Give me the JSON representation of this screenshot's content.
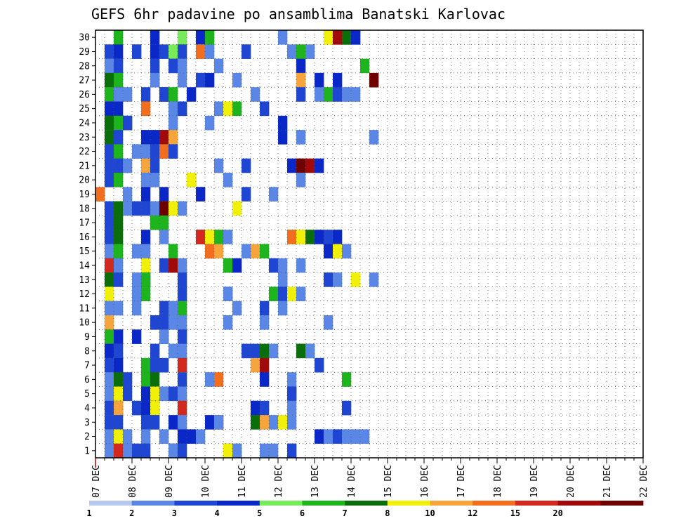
{
  "chart_data": {
    "type": "heatmap",
    "title": "GEFS 6hr padavine po ansamblima Banatski Karlovac",
    "xlabel": "",
    "ylabel": "",
    "x_tick_labels": [
      "07 DEC",
      "08 DEC",
      "09 DEC",
      "10 DEC",
      "11 DEC",
      "12 DEC",
      "13 DEC",
      "14 DEC",
      "15 DEC",
      "16 DEC",
      "17 DEC",
      "18 DEC",
      "19 DEC",
      "20 DEC",
      "21 DEC",
      "22 DEC"
    ],
    "y_tick_labels": [
      "1",
      "2",
      "3",
      "4",
      "5",
      "6",
      "7",
      "8",
      "9",
      "10",
      "11",
      "12",
      "13",
      "14",
      "15",
      "16",
      "17",
      "18",
      "19",
      "20",
      "21",
      "22",
      "23",
      "24",
      "25",
      "26",
      "27",
      "28",
      "29",
      "30"
    ],
    "members": 30,
    "steps_per_day": 4,
    "start_date": "07 DEC",
    "end_date": "22 DEC",
    "grid": true,
    "legend_position": "bottom",
    "legend": {
      "labels": [
        "1",
        "2",
        "3",
        "4",
        "5",
        "6",
        "7",
        "8",
        "10",
        "12",
        "15",
        "20"
      ],
      "colors": [
        "#b4c8f0",
        "#5a87e6",
        "#1e46d2",
        "#0a28c8",
        "#78eb5a",
        "#1eb41e",
        "#0a6e0a",
        "#f0f00a",
        "#f5a53c",
        "#f06e1e",
        "#d2281e",
        "#a00a0a",
        "#6e0000"
      ]
    },
    "cells": [
      [
        30,
        2,
        5
      ],
      [
        30,
        6,
        3
      ],
      [
        30,
        9,
        4
      ],
      [
        30,
        11,
        3
      ],
      [
        30,
        12,
        5
      ],
      [
        30,
        20,
        1
      ],
      [
        30,
        25,
        7
      ],
      [
        30,
        26,
        1
      ],
      [
        30,
        26,
        11
      ],
      [
        30,
        27,
        10
      ],
      [
        30,
        27,
        6
      ],
      [
        30,
        28,
        1
      ],
      [
        30,
        28,
        3
      ],
      [
        29,
        1,
        2
      ],
      [
        29,
        2,
        3
      ],
      [
        29,
        4,
        1
      ],
      [
        29,
        4,
        2
      ],
      [
        29,
        6,
        2
      ],
      [
        29,
        6,
        3
      ],
      [
        29,
        7,
        2
      ],
      [
        29,
        8,
        4
      ],
      [
        29,
        9,
        2
      ],
      [
        29,
        11,
        4
      ],
      [
        29,
        11,
        9
      ],
      [
        29,
        12,
        1
      ],
      [
        29,
        16,
        1
      ],
      [
        29,
        16,
        2
      ],
      [
        29,
        21,
        1
      ],
      [
        29,
        22,
        5
      ],
      [
        29,
        23,
        1
      ],
      [
        28,
        1,
        1
      ],
      [
        28,
        2,
        2
      ],
      [
        28,
        6,
        2
      ],
      [
        28,
        8,
        2
      ],
      [
        28,
        9,
        1
      ],
      [
        28,
        13,
        1
      ],
      [
        28,
        22,
        3
      ],
      [
        28,
        29,
        5
      ],
      [
        27,
        1,
        6
      ],
      [
        27,
        2,
        5
      ],
      [
        27,
        6,
        11
      ],
      [
        27,
        6,
        1
      ],
      [
        27,
        9,
        1
      ],
      [
        27,
        11,
        1
      ],
      [
        27,
        11,
        2
      ],
      [
        27,
        12,
        3
      ],
      [
        27,
        15,
        1
      ],
      [
        27,
        22,
        5
      ],
      [
        27,
        22,
        8
      ],
      [
        27,
        24,
        2
      ],
      [
        27,
        24,
        3
      ],
      [
        27,
        26,
        3
      ],
      [
        27,
        30,
        8
      ],
      [
        27,
        30,
        12
      ],
      [
        26,
        1,
        5
      ],
      [
        26,
        2,
        6
      ],
      [
        26,
        2,
        1
      ],
      [
        26,
        3,
        1
      ],
      [
        26,
        5,
        2
      ],
      [
        26,
        7,
        3
      ],
      [
        26,
        7,
        2
      ],
      [
        26,
        8,
        5
      ],
      [
        26,
        10,
        3
      ],
      [
        26,
        17,
        1
      ],
      [
        26,
        22,
        2
      ],
      [
        26,
        24,
        1
      ],
      [
        26,
        25,
        5
      ],
      [
        26,
        26,
        2
      ],
      [
        26,
        27,
        1
      ],
      [
        26,
        28,
        1
      ],
      [
        25,
        1,
        3
      ],
      [
        25,
        2,
        3
      ],
      [
        25,
        5,
        7
      ],
      [
        25,
        5,
        9
      ],
      [
        25,
        8,
        1
      ],
      [
        25,
        9,
        6
      ],
      [
        25,
        9,
        2
      ],
      [
        25,
        13,
        1
      ],
      [
        25,
        14,
        5
      ],
      [
        25,
        14,
        7
      ],
      [
        25,
        15,
        5
      ],
      [
        25,
        18,
        1
      ],
      [
        25,
        18,
        2
      ],
      [
        24,
        1,
        6
      ],
      [
        24,
        2,
        5
      ],
      [
        24,
        3,
        6
      ],
      [
        24,
        3,
        2
      ],
      [
        24,
        8,
        1
      ],
      [
        24,
        12,
        1
      ],
      [
        24,
        20,
        3
      ],
      [
        23,
        1,
        5
      ],
      [
        23,
        1,
        6
      ],
      [
        23,
        2,
        2
      ],
      [
        23,
        5,
        3
      ],
      [
        23,
        6,
        3
      ],
      [
        23,
        7,
        3
      ],
      [
        23,
        7,
        11
      ],
      [
        23,
        8,
        8
      ],
      [
        23,
        20,
        3
      ],
      [
        23,
        22,
        1
      ],
      [
        23,
        30,
        1
      ],
      [
        22,
        1,
        2
      ],
      [
        22,
        2,
        5
      ],
      [
        22,
        4,
        1
      ],
      [
        22,
        5,
        1
      ],
      [
        22,
        6,
        2
      ],
      [
        22,
        7,
        5
      ],
      [
        22,
        7,
        9
      ],
      [
        22,
        8,
        2
      ],
      [
        21,
        1,
        2
      ],
      [
        21,
        2,
        2
      ],
      [
        21,
        3,
        1
      ],
      [
        21,
        5,
        8
      ],
      [
        21,
        6,
        2
      ],
      [
        21,
        13,
        1
      ],
      [
        21,
        16,
        2
      ],
      [
        21,
        21,
        3
      ],
      [
        21,
        22,
        8
      ],
      [
        21,
        22,
        12
      ],
      [
        21,
        23,
        11
      ],
      [
        21,
        24,
        3
      ],
      [
        20,
        1,
        2
      ],
      [
        20,
        2,
        5
      ],
      [
        20,
        5,
        1
      ],
      [
        20,
        6,
        1
      ],
      [
        20,
        10,
        3
      ],
      [
        20,
        10,
        7
      ],
      [
        20,
        14,
        1
      ],
      [
        20,
        22,
        1
      ],
      [
        19,
        0,
        9
      ],
      [
        19,
        3,
        1
      ],
      [
        19,
        5,
        3
      ],
      [
        19,
        7,
        3
      ],
      [
        19,
        11,
        9
      ],
      [
        19,
        11,
        3
      ],
      [
        19,
        16,
        2
      ],
      [
        19,
        19,
        1
      ],
      [
        18,
        1,
        2
      ],
      [
        18,
        2,
        6
      ],
      [
        18,
        3,
        1
      ],
      [
        18,
        4,
        2
      ],
      [
        18,
        5,
        2
      ],
      [
        18,
        6,
        1
      ],
      [
        18,
        7,
        12
      ],
      [
        18,
        8,
        7
      ],
      [
        18,
        9,
        1
      ],
      [
        18,
        15,
        7
      ],
      [
        17,
        1,
        2
      ],
      [
        17,
        2,
        6
      ],
      [
        17,
        6,
        5
      ],
      [
        17,
        7,
        5
      ],
      [
        16,
        1,
        2
      ],
      [
        16,
        2,
        6
      ],
      [
        16,
        5,
        3
      ],
      [
        16,
        7,
        1
      ],
      [
        16,
        11,
        12
      ],
      [
        16,
        11,
        10
      ],
      [
        16,
        12,
        3
      ],
      [
        16,
        12,
        7
      ],
      [
        16,
        13,
        8
      ],
      [
        16,
        13,
        5
      ],
      [
        16,
        14,
        1
      ],
      [
        16,
        21,
        13
      ],
      [
        16,
        21,
        9
      ],
      [
        16,
        22,
        8
      ],
      [
        16,
        22,
        7
      ],
      [
        16,
        23,
        6
      ],
      [
        16,
        24,
        3
      ],
      [
        16,
        25,
        2
      ],
      [
        16,
        26,
        3
      ],
      [
        15,
        1,
        1
      ],
      [
        15,
        2,
        5
      ],
      [
        15,
        4,
        1
      ],
      [
        15,
        5,
        1
      ],
      [
        15,
        8,
        5
      ],
      [
        15,
        12,
        1
      ],
      [
        15,
        12,
        10
      ],
      [
        15,
        12,
        9
      ],
      [
        15,
        13,
        8
      ],
      [
        15,
        16,
        1
      ],
      [
        15,
        17,
        8
      ],
      [
        15,
        18,
        5
      ],
      [
        15,
        25,
        3
      ],
      [
        15,
        26,
        6
      ],
      [
        15,
        26,
        7
      ],
      [
        15,
        27,
        1
      ],
      [
        14,
        1,
        10
      ],
      [
        14,
        2,
        1
      ],
      [
        14,
        5,
        9
      ],
      [
        14,
        5,
        7
      ],
      [
        14,
        7,
        2
      ],
      [
        14,
        8,
        3
      ],
      [
        14,
        8,
        11
      ],
      [
        14,
        9,
        1
      ],
      [
        14,
        14,
        1
      ],
      [
        14,
        14,
        5
      ],
      [
        14,
        15,
        3
      ],
      [
        14,
        19,
        2
      ],
      [
        14,
        20,
        1
      ],
      [
        14,
        22,
        1
      ],
      [
        13,
        1,
        6
      ],
      [
        13,
        2,
        2
      ],
      [
        13,
        4,
        1
      ],
      [
        13,
        5,
        3
      ],
      [
        13,
        5,
        5
      ],
      [
        13,
        9,
        2
      ],
      [
        13,
        20,
        2
      ],
      [
        13,
        20,
        1
      ],
      [
        13,
        25,
        2
      ],
      [
        13,
        26,
        1
      ],
      [
        13,
        28,
        7
      ],
      [
        13,
        30,
        1
      ],
      [
        12,
        1,
        7
      ],
      [
        12,
        4,
        1
      ],
      [
        12,
        5,
        5
      ],
      [
        12,
        9,
        2
      ],
      [
        12,
        14,
        3
      ],
      [
        12,
        14,
        1
      ],
      [
        12,
        19,
        1
      ],
      [
        12,
        19,
        5
      ],
      [
        12,
        20,
        2
      ],
      [
        12,
        21,
        7
      ],
      [
        12,
        22,
        1
      ],
      [
        11,
        1,
        1
      ],
      [
        11,
        2,
        1
      ],
      [
        11,
        4,
        1
      ],
      [
        11,
        7,
        11
      ],
      [
        11,
        7,
        2
      ],
      [
        11,
        8,
        1
      ],
      [
        11,
        9,
        5
      ],
      [
        11,
        15,
        1
      ],
      [
        11,
        18,
        2
      ],
      [
        11,
        20,
        1
      ],
      [
        10,
        1,
        8
      ],
      [
        10,
        6,
        2
      ],
      [
        10,
        7,
        2
      ],
      [
        10,
        8,
        1
      ],
      [
        10,
        9,
        1
      ],
      [
        10,
        14,
        1
      ],
      [
        10,
        18,
        1
      ],
      [
        10,
        25,
        1
      ],
      [
        9,
        1,
        5
      ],
      [
        9,
        2,
        1
      ],
      [
        9,
        2,
        3
      ],
      [
        9,
        4,
        3
      ],
      [
        9,
        7,
        2
      ],
      [
        9,
        7,
        1
      ],
      [
        9,
        9,
        1
      ],
      [
        9,
        9,
        2
      ],
      [
        8,
        1,
        2
      ],
      [
        8,
        1,
        3
      ],
      [
        8,
        2,
        2
      ],
      [
        8,
        6,
        2
      ],
      [
        8,
        8,
        1
      ],
      [
        8,
        9,
        1
      ],
      [
        8,
        16,
        2
      ],
      [
        8,
        17,
        2
      ],
      [
        8,
        18,
        6
      ],
      [
        8,
        19,
        1
      ],
      [
        8,
        22,
        6
      ],
      [
        8,
        23,
        5
      ],
      [
        8,
        23,
        1
      ],
      [
        7,
        1,
        2
      ],
      [
        7,
        2,
        5
      ],
      [
        7,
        2,
        3
      ],
      [
        7,
        5,
        5
      ],
      [
        7,
        6,
        2
      ],
      [
        7,
        7,
        2
      ],
      [
        7,
        9,
        1
      ],
      [
        7,
        9,
        10
      ],
      [
        7,
        17,
        1
      ],
      [
        7,
        17,
        8
      ],
      [
        7,
        18,
        11
      ],
      [
        7,
        24,
        1
      ],
      [
        7,
        24,
        2
      ],
      [
        6,
        1,
        1
      ],
      [
        6,
        2,
        6
      ],
      [
        6,
        3,
        2
      ],
      [
        6,
        5,
        5
      ],
      [
        6,
        6,
        6
      ],
      [
        6,
        9,
        7
      ],
      [
        6,
        9,
        2
      ],
      [
        6,
        12,
        1
      ],
      [
        6,
        13,
        9
      ],
      [
        6,
        18,
        3
      ],
      [
        6,
        21,
        1
      ],
      [
        6,
        27,
        5
      ],
      [
        5,
        1,
        1
      ],
      [
        5,
        2,
        7
      ],
      [
        5,
        3,
        2
      ],
      [
        5,
        5,
        3
      ],
      [
        5,
        6,
        7
      ],
      [
        5,
        7,
        1
      ],
      [
        5,
        8,
        2
      ],
      [
        5,
        9,
        1
      ],
      [
        5,
        21,
        6
      ],
      [
        5,
        21,
        2
      ],
      [
        4,
        1,
        2
      ],
      [
        4,
        2,
        1
      ],
      [
        4,
        2,
        8
      ],
      [
        4,
        4,
        2
      ],
      [
        4,
        5,
        3
      ],
      [
        4,
        6,
        3
      ],
      [
        4,
        6,
        7
      ],
      [
        4,
        9,
        10
      ],
      [
        4,
        17,
        1
      ],
      [
        4,
        17,
        3
      ],
      [
        4,
        18,
        2
      ],
      [
        4,
        21,
        1
      ],
      [
        4,
        27,
        2
      ],
      [
        3,
        1,
        2
      ],
      [
        3,
        2,
        2
      ],
      [
        3,
        5,
        2
      ],
      [
        3,
        6,
        2
      ],
      [
        3,
        8,
        3
      ],
      [
        3,
        9,
        1
      ],
      [
        3,
        12,
        3
      ],
      [
        3,
        13,
        10
      ],
      [
        3,
        13,
        1
      ],
      [
        3,
        17,
        6
      ],
      [
        3,
        18,
        1
      ],
      [
        3,
        18,
        8
      ],
      [
        3,
        19,
        1
      ],
      [
        3,
        20,
        7
      ],
      [
        3,
        21,
        1
      ],
      [
        2,
        1,
        1
      ],
      [
        2,
        2,
        7
      ],
      [
        2,
        3,
        1
      ],
      [
        2,
        5,
        1
      ],
      [
        2,
        7,
        1
      ],
      [
        2,
        9,
        3
      ],
      [
        2,
        10,
        3
      ],
      [
        2,
        11,
        1
      ],
      [
        2,
        24,
        3
      ],
      [
        2,
        25,
        1
      ],
      [
        2,
        26,
        2
      ],
      [
        2,
        27,
        1
      ],
      [
        2,
        28,
        1
      ],
      [
        2,
        29,
        1
      ],
      [
        1,
        1,
        1
      ],
      [
        1,
        2,
        10
      ],
      [
        1,
        3,
        1
      ],
      [
        1,
        4,
        2
      ],
      [
        1,
        5,
        2
      ],
      [
        1,
        8,
        11
      ],
      [
        1,
        8,
        1
      ],
      [
        1,
        9,
        2
      ],
      [
        1,
        14,
        3
      ],
      [
        1,
        14,
        7
      ],
      [
        1,
        15,
        5
      ],
      [
        1,
        15,
        1
      ],
      [
        1,
        18,
        1
      ],
      [
        1,
        19,
        1
      ],
      [
        1,
        21,
        1
      ],
      [
        1,
        21,
        2
      ]
    ]
  }
}
